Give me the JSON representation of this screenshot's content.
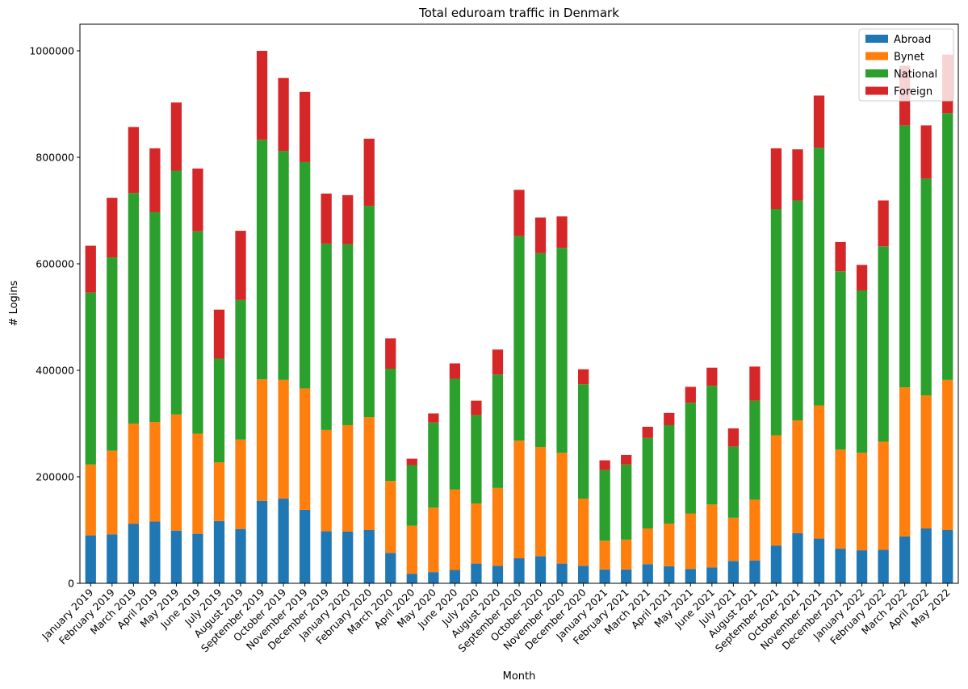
{
  "chart_data": {
    "type": "bar",
    "stacked": true,
    "title": "Total eduroam traffic in Denmark",
    "xlabel": "Month",
    "ylabel": "# Logins",
    "ylim": [
      0,
      1050000
    ],
    "yticks": [
      0,
      200000,
      400000,
      600000,
      800000,
      1000000
    ],
    "ytick_labels": [
      "0",
      "200000",
      "400000",
      "600000",
      "800000",
      "1000000"
    ],
    "grid": false,
    "legend_position": "top-right",
    "categories": [
      "January 2019",
      "February 2019",
      "March 2019",
      "April 2019",
      "May 2019",
      "June 2019",
      "July 2019",
      "August 2019",
      "September 2019",
      "October 2019",
      "November 2019",
      "December 2019",
      "January 2020",
      "February 2020",
      "March 2020",
      "April 2020",
      "May 2020",
      "June 2020",
      "July 2020",
      "August 2020",
      "September 2020",
      "October 2020",
      "November 2020",
      "December 2020",
      "January 2021",
      "February 2021",
      "March 2021",
      "April 2021",
      "May 2021",
      "June 2021",
      "July 2021",
      "August 2021",
      "September 2021",
      "October 2021",
      "November 2021",
      "December 2021",
      "January 2022",
      "February 2022",
      "March 2022",
      "April 2022",
      "May 2022"
    ],
    "series": [
      {
        "name": "Abroad",
        "color": "#1f77b4",
        "values": [
          90000,
          92000,
          112000,
          116000,
          99000,
          93000,
          117000,
          102000,
          155000,
          159000,
          138000,
          98000,
          97000,
          100000,
          57000,
          18000,
          21000,
          25000,
          37000,
          33000,
          47000,
          51000,
          37000,
          33000,
          26000,
          26000,
          36000,
          32000,
          27000,
          30000,
          42000,
          43000,
          71000,
          94000,
          84000,
          65000,
          62000,
          63000,
          88000,
          103000,
          100000
        ]
      },
      {
        "name": "Bynet",
        "color": "#ff7f0e",
        "values": [
          133000,
          157000,
          188000,
          187000,
          218000,
          188000,
          110000,
          168000,
          228000,
          223000,
          228000,
          190000,
          200000,
          212000,
          135000,
          90000,
          121000,
          151000,
          113000,
          146000,
          221000,
          205000,
          208000,
          126000,
          54000,
          56000,
          67000,
          80000,
          104000,
          118000,
          81000,
          114000,
          207000,
          212000,
          250000,
          186000,
          183000,
          203000,
          280000,
          250000,
          282000
        ]
      },
      {
        "name": "National",
        "color": "#2ca02c",
        "values": [
          323000,
          363000,
          433000,
          394000,
          458000,
          380000,
          195000,
          262000,
          450000,
          430000,
          425000,
          350000,
          340000,
          397000,
          211000,
          114000,
          160000,
          208000,
          166000,
          213000,
          384000,
          364000,
          385000,
          215000,
          133000,
          141000,
          170000,
          185000,
          208000,
          223000,
          134000,
          186000,
          425000,
          413000,
          484000,
          335000,
          305000,
          367000,
          492000,
          407000,
          501000
        ]
      },
      {
        "name": "Foreign",
        "color": "#d62728",
        "values": [
          88000,
          112000,
          124000,
          120000,
          128000,
          118000,
          92000,
          130000,
          167000,
          137000,
          132000,
          94000,
          92000,
          126000,
          57000,
          12000,
          17000,
          29000,
          27000,
          47000,
          87000,
          67000,
          59000,
          28000,
          18000,
          18000,
          21000,
          23000,
          30000,
          34000,
          34000,
          64000,
          114000,
          96000,
          98000,
          55000,
          48000,
          86000,
          112000,
          100000,
          110000
        ]
      }
    ]
  }
}
